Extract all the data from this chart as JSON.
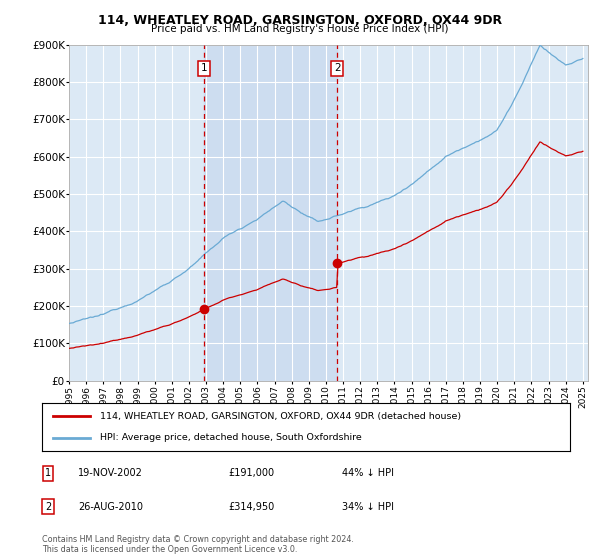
{
  "title": "114, WHEATLEY ROAD, GARSINGTON, OXFORD, OX44 9DR",
  "subtitle": "Price paid vs. HM Land Registry's House Price Index (HPI)",
  "hpi_label": "HPI: Average price, detached house, South Oxfordshire",
  "property_label": "114, WHEATLEY ROAD, GARSINGTON, OXFORD, OX44 9DR (detached house)",
  "footer": "Contains HM Land Registry data © Crown copyright and database right 2024.\nThis data is licensed under the Open Government Licence v3.0.",
  "transaction1": {
    "date": "19-NOV-2002",
    "price": "£191,000",
    "hpi_diff": "44% ↓ HPI",
    "x": 2002.88
  },
  "transaction2": {
    "date": "26-AUG-2010",
    "price": "£314,950",
    "hpi_diff": "34% ↓ HPI",
    "x": 2010.65
  },
  "t1_y": 191000,
  "t2_y": 314950,
  "ylim": [
    0,
    900000
  ],
  "xlim": [
    1995.0,
    2025.3
  ],
  "background_color": "#ffffff",
  "plot_bg_color": "#dce9f5",
  "shade_color": "#c8d8ee",
  "grid_color": "#ffffff",
  "hpi_color": "#6aaad4",
  "property_color": "#cc0000",
  "vline_color": "#cc0000",
  "marker_color": "#cc0000"
}
